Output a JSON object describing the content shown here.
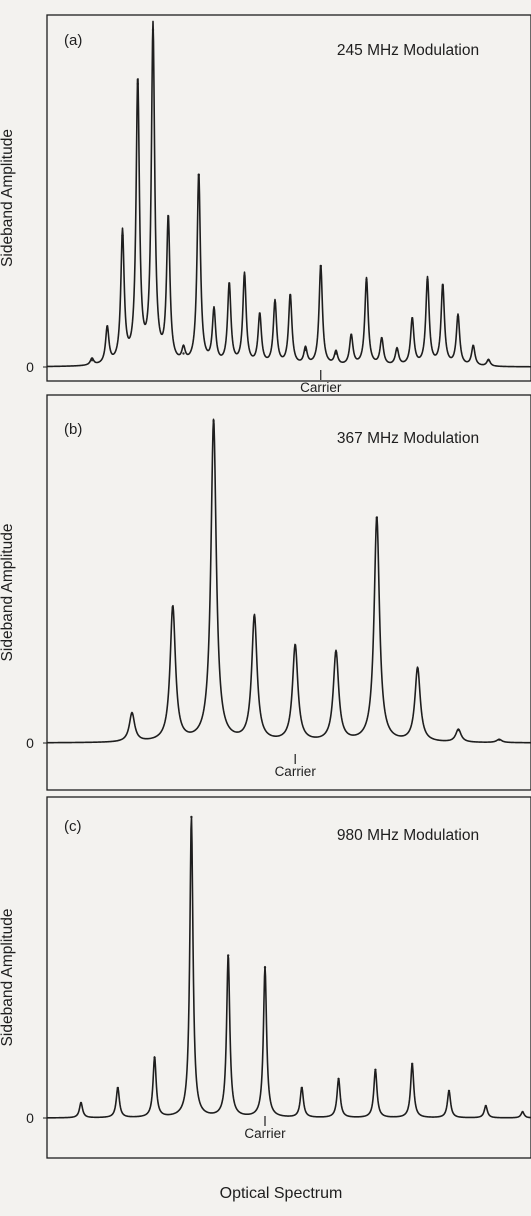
{
  "colors": {
    "ink": "#1e1e1e",
    "background": "#f3f2ef"
  },
  "chart_data": [
    {
      "type": "line",
      "panel_label": "(a)",
      "title": "245 MHz Modulation",
      "ylabel": "Sideband Amplitude",
      "y_tick_labels": [
        "0"
      ],
      "carrier_label": "Carrier",
      "carrier_index": 15,
      "ylim": [
        0,
        1
      ],
      "sideband_amplitudes": [
        0.02,
        0.11,
        0.39,
        0.84,
        1.0,
        0.43,
        0.04,
        0.57,
        0.16,
        0.24,
        0.27,
        0.15,
        0.19,
        0.21,
        0.05,
        0.3,
        0.04,
        0.09,
        0.26,
        0.08,
        0.05,
        0.14,
        0.26,
        0.24,
        0.15,
        0.06,
        0.02
      ]
    },
    {
      "type": "line",
      "panel_label": "(b)",
      "title": "367 MHz Modulation",
      "ylabel": "Sideband Amplitude",
      "y_tick_labels": [
        "0"
      ],
      "carrier_label": "Carrier",
      "carrier_index": 4,
      "ylim": [
        0,
        1
      ],
      "sideband_amplitudes": [
        0.09,
        0.42,
        1.0,
        0.39,
        0.3,
        0.28,
        0.7,
        0.23,
        0.04,
        0.01
      ]
    },
    {
      "type": "line",
      "panel_label": "(c)",
      "title": "980 MHz Modulation",
      "ylabel": "Sideband Amplitude",
      "y_tick_labels": [
        "0"
      ],
      "carrier_label": "Carrier",
      "carrier_index": 5,
      "ylim": [
        0,
        1
      ],
      "sideband_amplitudes": [
        0.05,
        0.1,
        0.2,
        1.0,
        0.54,
        0.5,
        0.1,
        0.13,
        0.16,
        0.18,
        0.09,
        0.04,
        0.02
      ]
    }
  ],
  "xlabel": "Optical Spectrum"
}
